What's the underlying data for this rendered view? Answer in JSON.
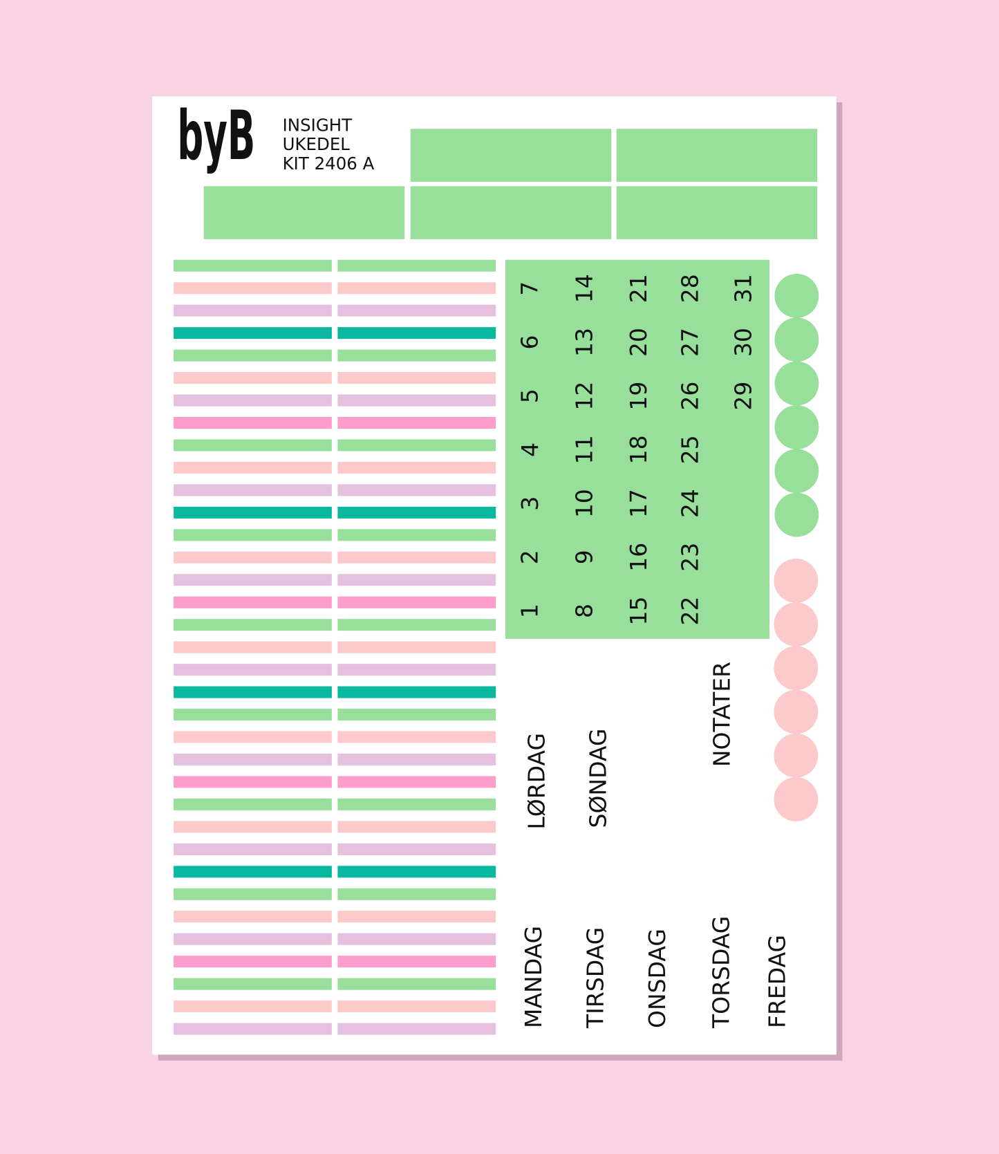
{
  "header": {
    "logo": "byB",
    "lines": [
      "INSIGHT",
      "UKEDEL",
      "KIT 2406 A"
    ]
  },
  "calendar": {
    "days": [
      1,
      2,
      3,
      4,
      5,
      6,
      7,
      8,
      9,
      10,
      11,
      12,
      13,
      14,
      15,
      16,
      17,
      18,
      19,
      20,
      21,
      22,
      23,
      24,
      25,
      26,
      27,
      28,
      29,
      30,
      31
    ]
  },
  "labels": {
    "weekend": [
      "LØRDAG",
      "SØNDAG"
    ],
    "notes": "NOTATER",
    "weekdays": [
      "MANDAG",
      "TIRSDAG",
      "ONSDAG",
      "TORSDAG",
      "FREDAG"
    ]
  }
}
